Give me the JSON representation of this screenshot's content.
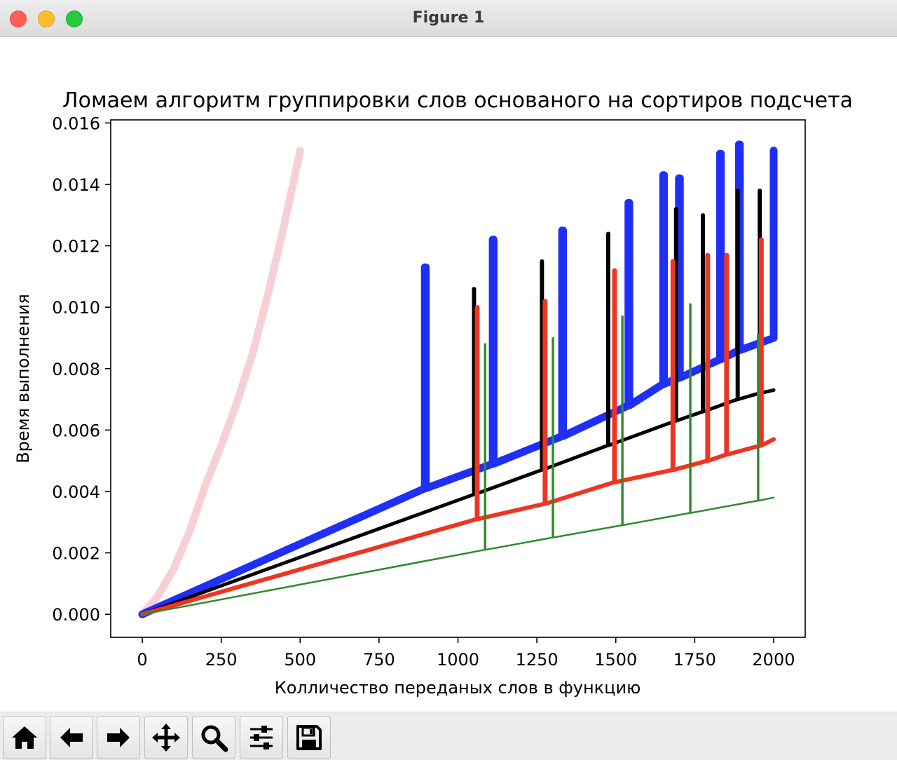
{
  "window": {
    "title": "Figure 1"
  },
  "toolbar": {
    "buttons": [
      {
        "name": "home-button",
        "icon": "home-icon"
      },
      {
        "name": "back-button",
        "icon": "arrow-left-icon"
      },
      {
        "name": "forward-button",
        "icon": "arrow-right-icon"
      },
      {
        "name": "pan-button",
        "icon": "move-icon"
      },
      {
        "name": "zoom-button",
        "icon": "magnifier-icon"
      },
      {
        "name": "configure-subplots-button",
        "icon": "sliders-icon"
      },
      {
        "name": "save-button",
        "icon": "floppy-disk-icon"
      }
    ]
  },
  "chart_data": {
    "type": "line",
    "title": "Ломаем алгоритм группировки слов основаного на сортиров подсчета",
    "xlabel": "Колличество переданых слов в функцию",
    "ylabel": "Время выполнения",
    "xlim": [
      -100,
      2100
    ],
    "ylim": [
      -0.00075,
      0.0161
    ],
    "xticks": [
      0,
      250,
      500,
      750,
      1000,
      1250,
      1500,
      1750,
      2000
    ],
    "xtick_labels": [
      "0",
      "250",
      "500",
      "750",
      "1000",
      "1250",
      "1500",
      "1750",
      "2000"
    ],
    "yticks": [
      0,
      0.002,
      0.004,
      0.006,
      0.008,
      0.01,
      0.012,
      0.014,
      0.016
    ],
    "ytick_labels": [
      "0.000",
      "0.002",
      "0.004",
      "0.006",
      "0.008",
      "0.010",
      "0.012",
      "0.014",
      "0.016"
    ],
    "grid": false,
    "legend": "none",
    "series": [
      {
        "color": "#f7d0d6",
        "width": 11,
        "x": [
          0,
          50,
          100,
          150,
          200,
          250,
          300,
          350,
          400,
          450,
          500
        ],
        "y": [
          0,
          0.0006,
          0.0015,
          0.0027,
          0.0042,
          0.0055,
          0.0069,
          0.0085,
          0.0105,
          0.0127,
          0.0151
        ]
      },
      {
        "color": "#1f2ff5",
        "width": 11,
        "x": [
          0,
          895,
          895,
          898,
          898,
          1110,
          1110,
          1113,
          1113,
          1330,
          1330,
          1333,
          1333,
          1540,
          1540,
          1543,
          1543,
          1650,
          1650,
          1653,
          1653,
          1700,
          1700,
          1703,
          1703,
          1830,
          1830,
          1833,
          1833,
          1890,
          1890,
          1893,
          1893,
          2000,
          2000
        ],
        "y": [
          0,
          0.0041,
          0.0113,
          0.0113,
          0.0041,
          0.0049,
          0.0122,
          0.0122,
          0.0049,
          0.0058,
          0.0125,
          0.0125,
          0.0058,
          0.0068,
          0.0134,
          0.0134,
          0.0068,
          0.0075,
          0.0143,
          0.0143,
          0.0075,
          0.0077,
          0.0142,
          0.0142,
          0.0077,
          0.0083,
          0.015,
          0.015,
          0.0083,
          0.0086,
          0.0153,
          0.0153,
          0.0086,
          0.009,
          0.0151
        ]
      },
      {
        "color": "#000000",
        "width": 5,
        "x": [
          0,
          1050,
          1050,
          1052,
          1052,
          1265,
          1265,
          1267,
          1267,
          1475,
          1475,
          1477,
          1477,
          1690,
          1690,
          1692,
          1692,
          1775,
          1775,
          1777,
          1777,
          1885,
          1885,
          1887,
          1887,
          1955,
          1955,
          1957,
          1957,
          2000
        ],
        "y": [
          0,
          0.0039,
          0.0106,
          0.0106,
          0.0039,
          0.0047,
          0.0115,
          0.0115,
          0.0047,
          0.0055,
          0.0124,
          0.0124,
          0.0055,
          0.0063,
          0.0132,
          0.0132,
          0.0063,
          0.0066,
          0.013,
          0.013,
          0.0066,
          0.007,
          0.0138,
          0.0138,
          0.007,
          0.0072,
          0.0138,
          0.0138,
          0.0072,
          0.0073
        ]
      },
      {
        "color": "#ee3524",
        "width": 6,
        "x": [
          0,
          1060,
          1060,
          1062,
          1062,
          1275,
          1275,
          1277,
          1277,
          1495,
          1495,
          1497,
          1497,
          1680,
          1680,
          1682,
          1682,
          1790,
          1790,
          1792,
          1792,
          1850,
          1850,
          1852,
          1852,
          1960,
          1960,
          1962,
          1962,
          2000
        ],
        "y": [
          0,
          0.0031,
          0.01,
          0.01,
          0.0031,
          0.0036,
          0.0102,
          0.0102,
          0.0036,
          0.0043,
          0.0112,
          0.0112,
          0.0043,
          0.0047,
          0.0115,
          0.0115,
          0.0047,
          0.005,
          0.0117,
          0.0117,
          0.005,
          0.0052,
          0.0117,
          0.0117,
          0.0052,
          0.0055,
          0.0122,
          0.0122,
          0.0055,
          0.0057
        ]
      },
      {
        "color": "#2f8a2a",
        "width": 2.5,
        "x": [
          0,
          1085,
          1085,
          1087,
          1087,
          1300,
          1300,
          1302,
          1302,
          1520,
          1520,
          1522,
          1522,
          1735,
          1735,
          1737,
          1737,
          1950,
          1950,
          1952,
          1952,
          2000
        ],
        "y": [
          0,
          0.0021,
          0.0088,
          0.0088,
          0.0021,
          0.0025,
          0.009,
          0.009,
          0.0025,
          0.0029,
          0.0097,
          0.0097,
          0.0029,
          0.0033,
          0.0101,
          0.0101,
          0.0033,
          0.0037,
          0.0091,
          0.0091,
          0.0037,
          0.0038
        ]
      }
    ]
  }
}
